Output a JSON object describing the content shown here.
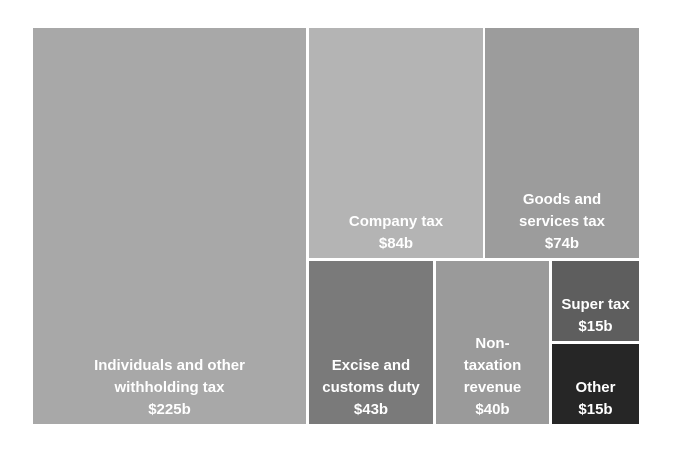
{
  "chart_data": {
    "type": "treemap",
    "title": "",
    "units": "$b",
    "items": [
      {
        "id": "individuals",
        "label_lines": [
          "Individuals and other",
          "withholding tax"
        ],
        "value_label": "$225b",
        "value": 225,
        "color": "#a8a8a8"
      },
      {
        "id": "company",
        "label_lines": [
          "Company tax"
        ],
        "value_label": "$84b",
        "value": 84,
        "color": "#b4b4b4"
      },
      {
        "id": "gst",
        "label_lines": [
          "Goods and",
          "services tax"
        ],
        "value_label": "$74b",
        "value": 74,
        "color": "#9c9c9c"
      },
      {
        "id": "excise",
        "label_lines": [
          "Excise and",
          "customs duty"
        ],
        "value_label": "$43b",
        "value": 43,
        "color": "#7a7a7a"
      },
      {
        "id": "nontax",
        "label_lines": [
          "Non-",
          "taxation",
          "revenue"
        ],
        "value_label": "$40b",
        "value": 40,
        "color": "#9a9a9a"
      },
      {
        "id": "super",
        "label_lines": [
          "Super tax"
        ],
        "value_label": "$15b",
        "value": 15,
        "color": "#5e5e5e"
      },
      {
        "id": "other",
        "label_lines": [
          "Other"
        ],
        "value_label": "$15b",
        "value": 15,
        "color": "#262626"
      }
    ]
  }
}
